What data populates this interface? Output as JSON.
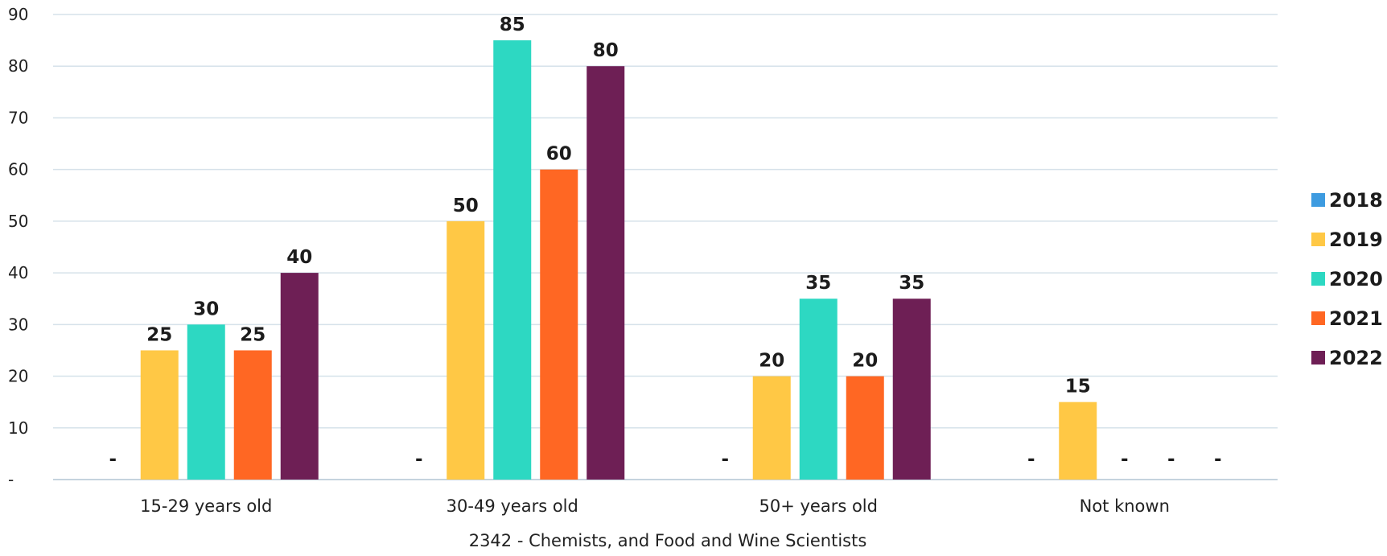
{
  "chart_data": {
    "type": "bar",
    "title": "",
    "xlabel": "2342 - Chemists, and Food and Wine Scientists",
    "ylabel": "",
    "ylim": [
      0,
      90
    ],
    "yticks": [
      0,
      10,
      20,
      30,
      40,
      50,
      60,
      70,
      80,
      90
    ],
    "ytick_labels": [
      "-",
      "10",
      "20",
      "30",
      "40",
      "50",
      "60",
      "70",
      "80",
      "90"
    ],
    "grid": true,
    "legend_position": "right",
    "categories": [
      "15-29 years old",
      "30-49 years old",
      "50+ years old",
      "Not known"
    ],
    "series": [
      {
        "name": "2018",
        "color": "#3d9be0",
        "values": [
          0,
          0,
          0,
          0
        ],
        "labels": [
          "-",
          "-",
          "-",
          "-"
        ]
      },
      {
        "name": "2019",
        "color": "#ffc845",
        "values": [
          25,
          50,
          20,
          15
        ],
        "labels": [
          "25",
          "50",
          "20",
          "15"
        ]
      },
      {
        "name": "2020",
        "color": "#2dd8c2",
        "values": [
          30,
          85,
          35,
          0
        ],
        "labels": [
          "30",
          "85",
          "35",
          "-"
        ]
      },
      {
        "name": "2021",
        "color": "#ff6723",
        "values": [
          25,
          60,
          20,
          0
        ],
        "labels": [
          "25",
          "60",
          "20",
          "-"
        ]
      },
      {
        "name": "2022",
        "color": "#6e1f55",
        "values": [
          40,
          80,
          35,
          0
        ],
        "labels": [
          "40",
          "80",
          "35",
          "-"
        ]
      }
    ]
  }
}
